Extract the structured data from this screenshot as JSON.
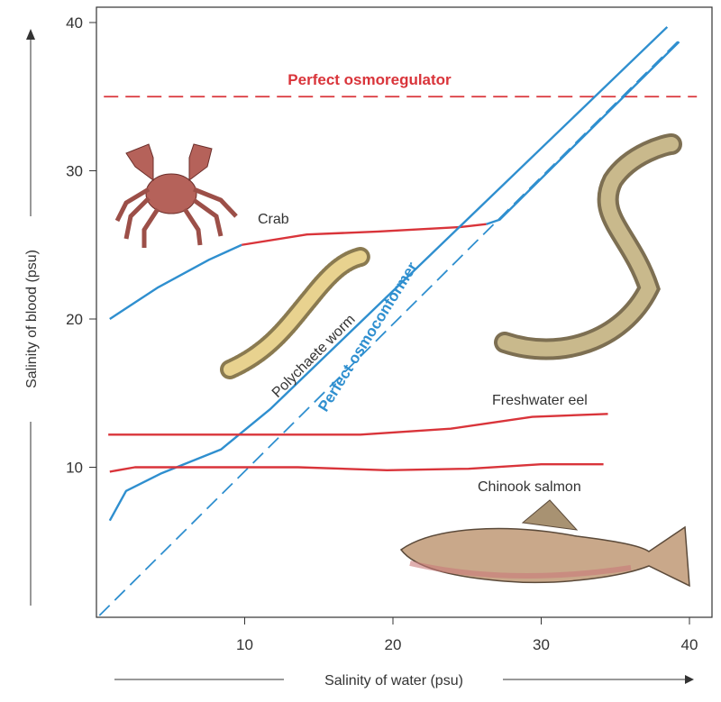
{
  "chart_data": {
    "type": "line",
    "xlabel": "Salinity of water (psu)",
    "ylabel": "Salinity of blood (psu)",
    "xlim": [
      0,
      41
    ],
    "ylim": [
      0,
      41
    ],
    "xticks": [
      10,
      20,
      30,
      40
    ],
    "yticks": [
      10,
      20,
      30,
      40
    ],
    "grid": false,
    "series": [
      {
        "name": "Perfect osmoregulator",
        "color": "#d9343a",
        "style": "dashed",
        "x": [
          0.5,
          40.5
        ],
        "y": [
          35,
          35
        ]
      },
      {
        "name": "Perfect osmoconformer",
        "color": "#2f8fcf",
        "style": "dashed",
        "x": [
          0.2,
          39.5
        ],
        "y": [
          0,
          39
        ]
      },
      {
        "name": "Crab",
        "color": "#2f8fcf",
        "style": "solid",
        "x": [
          0.9,
          4.1,
          7.6,
          9.8
        ],
        "y": [
          20,
          22.1,
          24,
          25
        ]
      },
      {
        "name": "Crab",
        "color": "#d9343a",
        "style": "solid",
        "x": [
          9.8,
          14.2,
          19,
          24.5,
          26.3
        ],
        "y": [
          25,
          25.7,
          25.9,
          26.2,
          26.4
        ]
      },
      {
        "name": "Crab",
        "color": "#2f8fcf",
        "style": "solid",
        "x": [
          26.3,
          27.2,
          39.3
        ],
        "y": [
          26.4,
          26.7,
          38.7
        ]
      },
      {
        "name": "Polychaete worm",
        "color": "#2f8fcf",
        "style": "solid",
        "x": [
          0.9,
          2,
          4.4,
          8.4,
          11.7,
          38.5
        ],
        "y": [
          6.4,
          8.4,
          9.6,
          11.2,
          13.9,
          39.7
        ]
      },
      {
        "name": "Freshwater eel",
        "color": "#d9343a",
        "style": "solid",
        "x": [
          0.8,
          17.8,
          23.9,
          29.4,
          34.5
        ],
        "y": [
          12.2,
          12.2,
          12.6,
          13.4,
          13.6
        ]
      },
      {
        "name": "Chinook salmon",
        "color": "#d9343a",
        "style": "solid",
        "x": [
          0.9,
          2.6,
          8.7,
          13.6,
          19.6,
          25.1,
          30,
          34.2
        ],
        "y": [
          9.7,
          10,
          10,
          10,
          9.8,
          9.9,
          10.2,
          10.2
        ]
      }
    ],
    "annotations": [
      "Perfect osmoregulator",
      "Perfect osmoconformer",
      "Crab",
      "Polychaete worm",
      "Freshwater eel",
      "Chinook salmon"
    ]
  }
}
